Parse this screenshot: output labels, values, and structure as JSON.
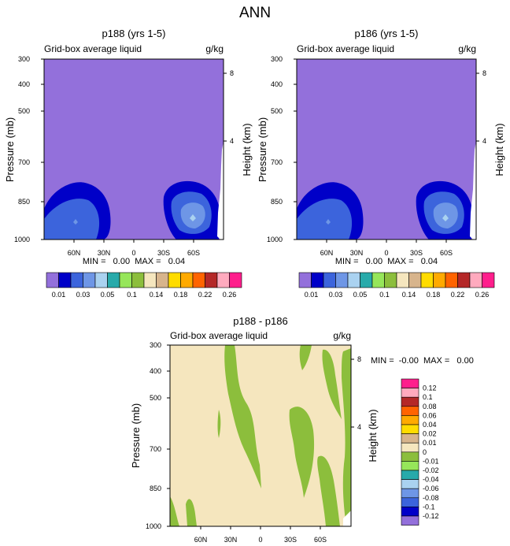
{
  "figure": {
    "title": "ANN"
  },
  "colors": {
    "palette": [
      "#9370db",
      "#0000c8",
      "#3c64dc",
      "#6e96e6",
      "#aad2f0",
      "#28aaaa",
      "#96e65a",
      "#8cbe3c",
      "#f5e6be",
      "#d7b48c",
      "#ffdc00",
      "#ffaa00",
      "#ff6400",
      "#b42828",
      "#ffaabe",
      "#ff1e8c"
    ],
    "diff_palette": [
      "#ff1e8c",
      "#ffaabe",
      "#b42828",
      "#ff6400",
      "#ffaa00",
      "#ffdc00",
      "#d7b48c",
      "#f5e6be",
      "#8cbe3c",
      "#96e65a",
      "#28aaaa",
      "#aad2f0",
      "#6e96e6",
      "#3c64dc",
      "#0000c8",
      "#9370db"
    ]
  },
  "chart_data": [
    {
      "type": "heatmap",
      "title": "p188 (yrs 1-5)",
      "left_label": "Grid-box average liquid",
      "units": "g/kg",
      "ylabel": "Pressure (mb)",
      "ylabel_right": "Height (km)",
      "y_ticks": [
        "300",
        "400",
        "500",
        "700",
        "850",
        "1000"
      ],
      "y_ticks_right": [
        "8",
        "4"
      ],
      "x_ticks": [
        "60N",
        "30N",
        "0",
        "30S",
        "60S"
      ],
      "stats": "MIN =   0.00  MAX =   0.04",
      "colorbar_labels": [
        "0.01",
        "0.03",
        "0.05",
        "0.1",
        "0.14",
        "0.18",
        "0.22",
        "0.26"
      ]
    },
    {
      "type": "heatmap",
      "title": "p186 (yrs 1-5)",
      "left_label": "Grid-box average liquid",
      "units": "g/kg",
      "ylabel": "Pressure (mb)",
      "ylabel_right": "Height (km)",
      "y_ticks": [
        "300",
        "400",
        "500",
        "700",
        "850",
        "1000"
      ],
      "y_ticks_right": [
        "8",
        "4"
      ],
      "x_ticks": [
        "60N",
        "30N",
        "0",
        "30S",
        "60S"
      ],
      "stats": "MIN =   0.00  MAX =   0.04",
      "colorbar_labels": [
        "0.01",
        "0.03",
        "0.05",
        "0.1",
        "0.14",
        "0.18",
        "0.22",
        "0.26"
      ]
    },
    {
      "type": "heatmap",
      "title": "p188 - p186",
      "left_label": "Grid-box average liquid",
      "units": "g/kg",
      "ylabel": "Pressure (mb)",
      "ylabel_right": "Height (km)",
      "y_ticks": [
        "300",
        "400",
        "500",
        "700",
        "850",
        "1000"
      ],
      "y_ticks_right": [
        "8",
        "4"
      ],
      "x_ticks": [
        "60N",
        "30N",
        "0",
        "30S",
        "60S"
      ],
      "stats": "MIN =  -0.00  MAX =   0.00",
      "colorbar_labels": [
        "0.12",
        "0.1",
        "0.08",
        "0.06",
        "0.04",
        "0.02",
        "0.01",
        "0",
        "-0.01",
        "-0.02",
        "-0.04",
        "-0.06",
        "-0.08",
        "-0.1",
        "-0.12"
      ]
    }
  ]
}
